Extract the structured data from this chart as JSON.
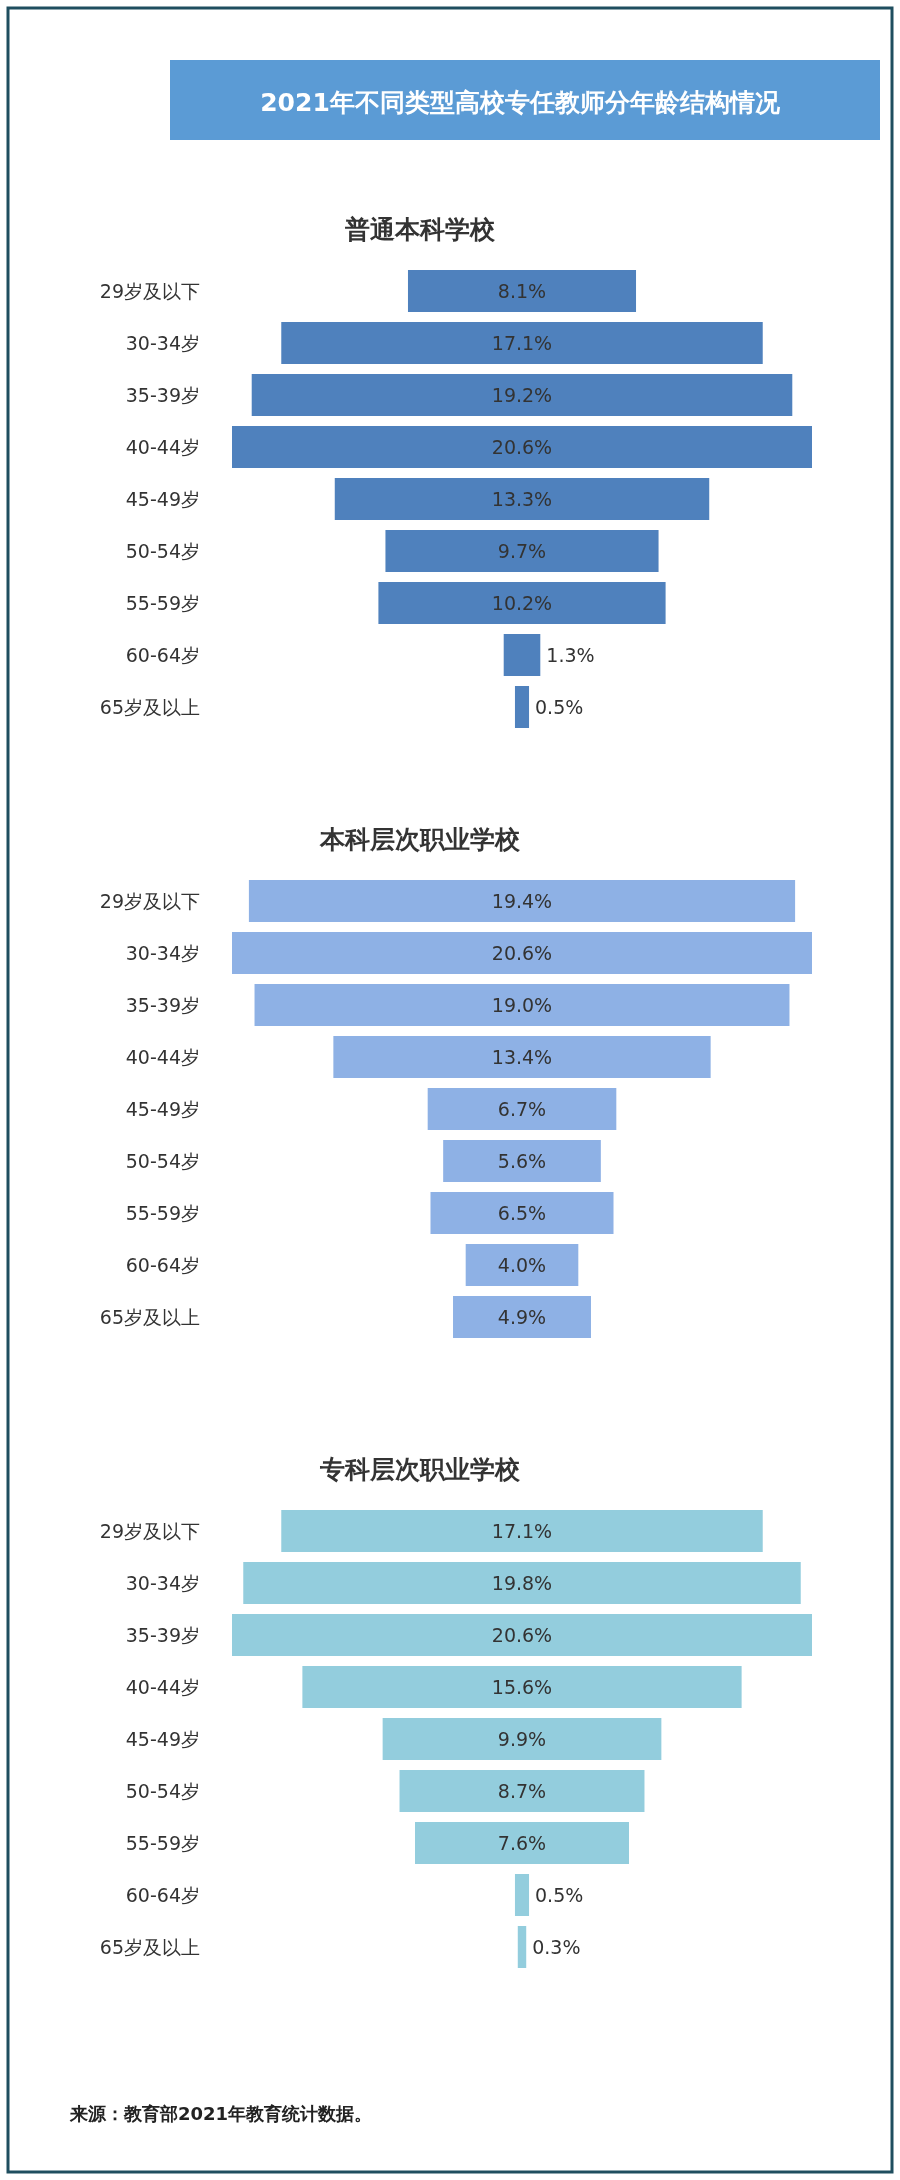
{
  "chart_data": [
    {
      "type": "other",
      "title": "2021年不同类型高校专任教师分年龄结构情况"
    },
    {
      "type": "other",
      "title": "普通本科学校",
      "color": "#4f81bd",
      "categories": [
        "29岁及以下",
        "30-34岁",
        "35-39岁",
        "40-44岁",
        "45-49岁",
        "50-54岁",
        "55-59岁",
        "60-64岁",
        "65岁及以上"
      ],
      "values": [
        8.1,
        17.1,
        19.2,
        20.6,
        13.3,
        9.7,
        10.2,
        1.3,
        0.5
      ],
      "value_labels": [
        "8.1%",
        "17.1%",
        "19.2%",
        "20.6%",
        "13.3%",
        "9.7%",
        "10.2%",
        "1.3%",
        "0.5%"
      ]
    },
    {
      "type": "other",
      "title": "本科层次职业学校",
      "color": "#8eb1e5",
      "categories": [
        "29岁及以下",
        "30-34岁",
        "35-39岁",
        "40-44岁",
        "45-49岁",
        "50-54岁",
        "55-59岁",
        "60-64岁",
        "65岁及以上"
      ],
      "values": [
        19.4,
        20.6,
        19.0,
        13.4,
        6.7,
        5.6,
        6.5,
        4.0,
        4.9
      ],
      "value_labels": [
        "19.4%",
        "20.6%",
        "19.0%",
        "13.4%",
        "6.7%",
        "5.6%",
        "6.5%",
        "4.0%",
        "4.9%"
      ]
    },
    {
      "type": "other",
      "title": "专科层次职业学校",
      "color": "#93cddd",
      "categories": [
        "29岁及以下",
        "30-34岁",
        "35-39岁",
        "40-44岁",
        "45-49岁",
        "50-54岁",
        "55-59岁",
        "60-64岁",
        "65岁及以上"
      ],
      "values": [
        17.1,
        19.8,
        20.6,
        15.6,
        9.9,
        8.7,
        7.6,
        0.5,
        0.3
      ],
      "value_labels": [
        "17.1%",
        "19.8%",
        "20.6%",
        "15.6%",
        "9.9%",
        "8.7%",
        "7.6%",
        "0.5%",
        "0.3%"
      ],
      "annotations": [
        "来源：教育部2021年教育统计数据。"
      ]
    }
  ]
}
